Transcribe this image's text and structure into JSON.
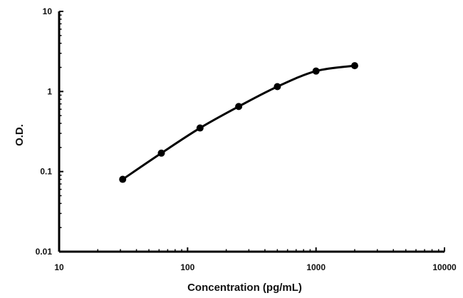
{
  "chart_data": {
    "type": "line",
    "title": "",
    "xlabel": "Concentration (pg/mL)",
    "ylabel": "O.D.",
    "x_scale": "log",
    "y_scale": "log",
    "xlim": [
      10,
      10000
    ],
    "ylim": [
      0.01,
      10
    ],
    "x_ticks": [
      "10",
      "100",
      "1000",
      "10000"
    ],
    "y_ticks": [
      "0.01",
      "0.1",
      "1",
      "10"
    ],
    "grid": false,
    "legend": "none",
    "line_color": "#000000",
    "series": [
      {
        "x": [
          31.25,
          62.5,
          125,
          250,
          500,
          1000,
          2000
        ],
        "y": [
          0.08,
          0.17,
          0.35,
          0.65,
          1.15,
          1.8,
          2.1
        ]
      }
    ]
  }
}
